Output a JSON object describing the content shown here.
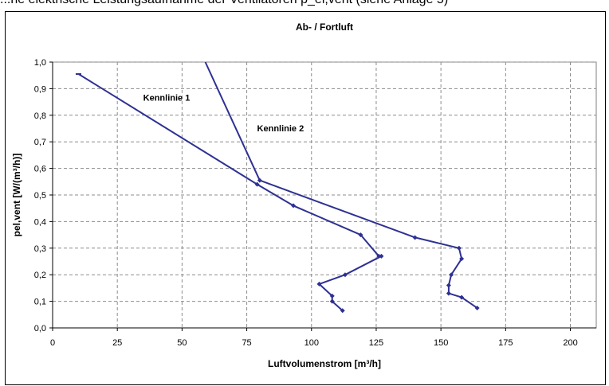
{
  "caption": "...ne elektrische Leistungsaufnahme der Ventilatoren p_el,vent (siehe Anlage 5)",
  "chart_data": {
    "type": "line",
    "title": "Ab- / Fortluft",
    "xlabel": "Luftvolumenstrom [m³/h]",
    "ylabel": "pel,vent [W/(m³/h)]",
    "xlim": [
      0,
      210
    ],
    "ylim": [
      0,
      1.0
    ],
    "x_ticks": [
      "0",
      "25",
      "50",
      "75",
      "100",
      "125",
      "150",
      "175",
      "200"
    ],
    "y_ticks": [
      "0,0",
      "0,1",
      "0,2",
      "0,3",
      "0,4",
      "0,5",
      "0,6",
      "0,7",
      "0,8",
      "0,9",
      "1,0"
    ],
    "grid": true,
    "annotations": [
      {
        "text": "Kennlinie 1",
        "x": 35,
        "y": 0.855
      },
      {
        "text": "Kennlinie 2",
        "x": 79,
        "y": 0.74
      }
    ],
    "series": [
      {
        "color": "#2e3192",
        "x": [
          10,
          79,
          93,
          119,
          126,
          127,
          113,
          103,
          108,
          108,
          112
        ],
        "y": [
          0.955,
          0.54,
          0.46,
          0.35,
          0.27,
          0.27,
          0.2,
          0.165,
          0.12,
          0.1,
          0.065
        ]
      },
      {
        "color": "#2e3192",
        "x": [
          59,
          80,
          140,
          157,
          158,
          154,
          153,
          153,
          158,
          164
        ],
        "y": [
          1.0,
          0.555,
          0.34,
          0.3,
          0.26,
          0.2,
          0.16,
          0.13,
          0.115,
          0.075
        ]
      }
    ]
  }
}
